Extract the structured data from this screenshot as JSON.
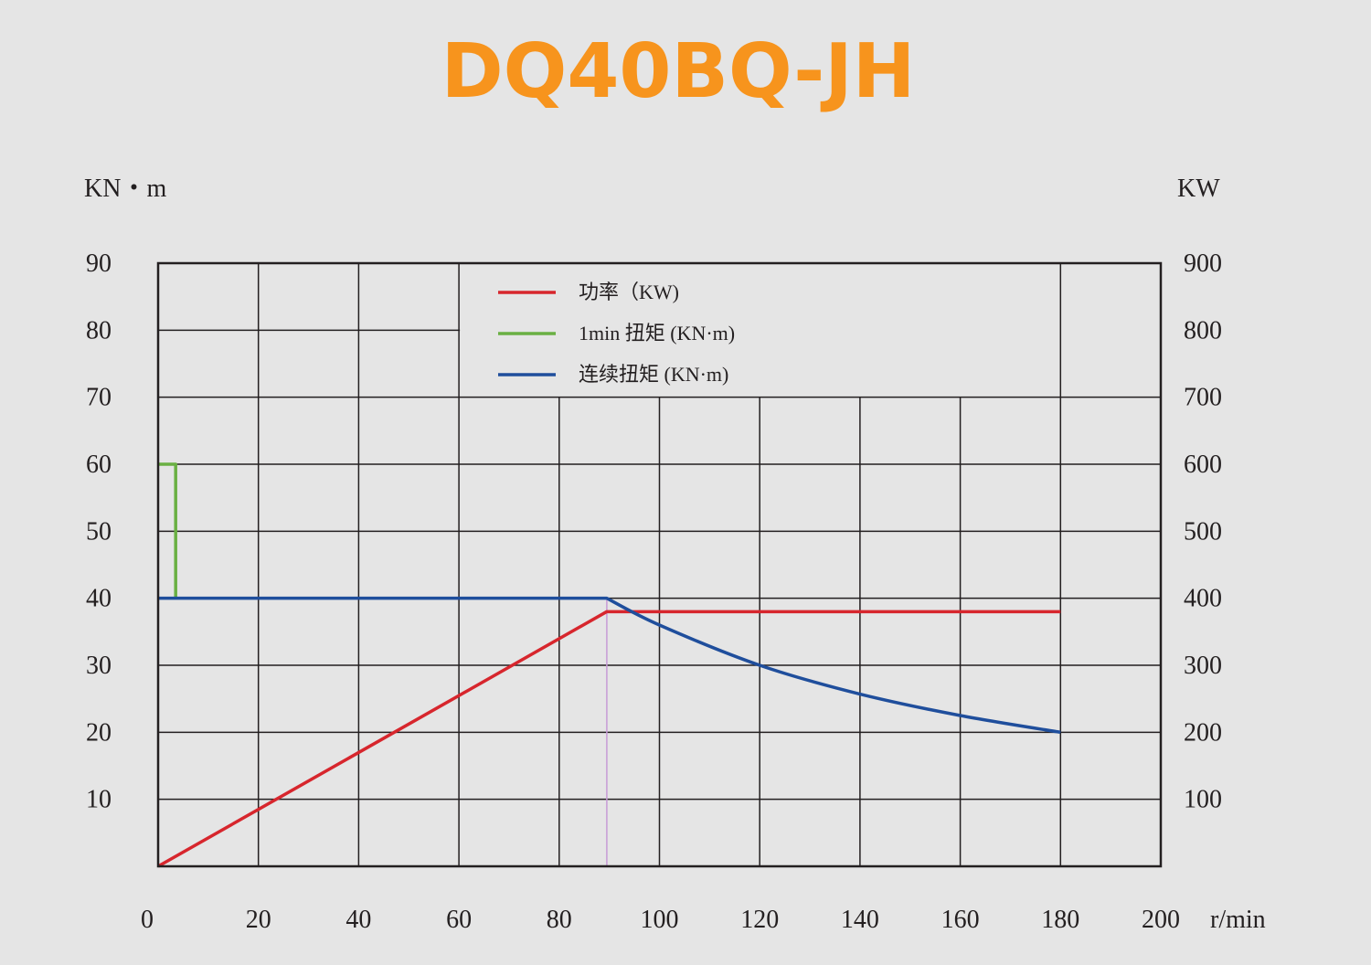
{
  "title": "DQ40BQ-JH",
  "colors": {
    "background": "#e5e5e5",
    "title": "#f7941d",
    "grid": "#231f20",
    "power": "#d7262d",
    "torque_1min": "#6ab043",
    "torque_continuous": "#1f4e9c",
    "marker_line": "#c79ad6"
  },
  "chart_data": {
    "type": "line",
    "title": "DQ40BQ-JH",
    "xlabel": "r/min",
    "ylabel_left": "KN・m",
    "ylabel_right": "KW",
    "xlim": [
      0,
      200
    ],
    "ylim_left": [
      0,
      90
    ],
    "ylim_right": [
      0,
      900
    ],
    "x_ticks": [
      "0",
      "20",
      "40",
      "60",
      "80",
      "100",
      "120",
      "140",
      "160",
      "180",
      "200"
    ],
    "y_ticks_left": [
      "10",
      "20",
      "30",
      "40",
      "50",
      "60",
      "70",
      "80",
      "90"
    ],
    "y_ticks_right": [
      "100",
      "200",
      "300",
      "400",
      "500",
      "600",
      "700",
      "800",
      "900"
    ],
    "grid": true,
    "legend_position": "top-center",
    "reference_line_x": 89.5,
    "series": [
      {
        "name": "功率（KW)",
        "axis": "right",
        "color": "#d7262d",
        "points": [
          [
            0,
            0
          ],
          [
            89.5,
            380
          ],
          [
            180,
            380
          ]
        ]
      },
      {
        "name": "1min 扭矩 (KN·m)",
        "axis": "left",
        "color": "#6ab043",
        "points": [
          [
            0,
            60
          ],
          [
            3.5,
            60
          ],
          [
            3.5,
            40
          ]
        ]
      },
      {
        "name": "连续扭矩 (KN·m)",
        "axis": "left",
        "color": "#1f4e9c",
        "points": [
          [
            0,
            40
          ],
          [
            89.5,
            40
          ],
          [
            100,
            36
          ],
          [
            120,
            30
          ],
          [
            140,
            25.7
          ],
          [
            160,
            22.5
          ],
          [
            180,
            20
          ]
        ]
      }
    ]
  }
}
